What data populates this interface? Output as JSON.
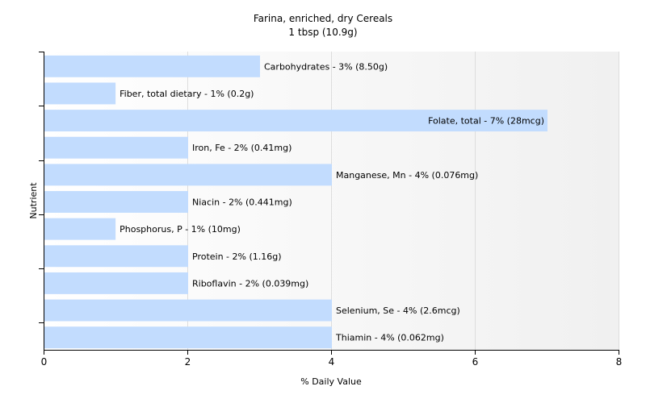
{
  "chart_data": {
    "type": "bar",
    "orientation": "horizontal",
    "title": "Farina, enriched, dry Cereals",
    "subtitle": "1 tbsp (10.9g)",
    "xlabel": "% Daily Value",
    "ylabel": "Nutrient",
    "xlim": [
      0,
      8
    ],
    "xticks": [
      0,
      2,
      4,
      6,
      8
    ],
    "grid": true,
    "bar_color": "#c2dcfe",
    "categories": [
      "Carbohydrates",
      "Fiber, total dietary",
      "Folate, total",
      "Iron, Fe",
      "Manganese, Mn",
      "Niacin",
      "Phosphorus, P",
      "Protein",
      "Riboflavin",
      "Selenium, Se",
      "Thiamin"
    ],
    "values": [
      3.0,
      0.99,
      7.0,
      2.0,
      4.0,
      2.0,
      0.99,
      2.0,
      2.0,
      4.0,
      4.0
    ],
    "labels": [
      "Carbohydrates - 3% (8.50g)",
      "Fiber, total dietary - 1% (0.2g)",
      "Folate, total - 7% (28mcg)",
      "Iron, Fe - 2% (0.41mg)",
      "Manganese, Mn - 4% (0.076mg)",
      "Niacin - 2% (0.441mg)",
      "Phosphorus, P - 1% (10mg)",
      "Protein - 2% (1.16g)",
      "Riboflavin - 2% (0.039mg)",
      "Selenium, Se - 4% (2.6mcg)",
      "Thiamin - 4% (0.062mg)"
    ]
  }
}
